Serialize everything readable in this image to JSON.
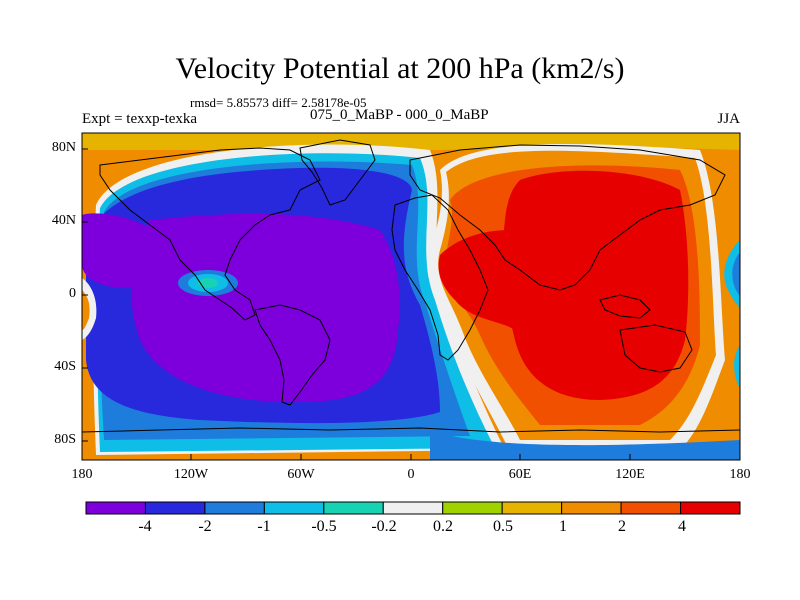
{
  "title": "Velocity Potential at 200 hPa (km2/s)",
  "stats": "rmsd= 5.85573  diff= 2.58178e-05",
  "left_label": "Expt = texxp-texka",
  "center_label": "075_0_MaBP - 000_0_MaBP",
  "right_label": "JJA",
  "map": {
    "lat_ticks": [
      "80N",
      "40N",
      "0",
      "40S",
      "80S"
    ],
    "lon_ticks": [
      "180",
      "120W",
      "60W",
      "0",
      "60E",
      "120E",
      "180"
    ]
  },
  "colorbar": {
    "colors": [
      "#7d00dc",
      "#2828dc",
      "#1e7ddc",
      "#0fbee6",
      "#18d2b4",
      "#f0f0f0",
      "#a0d200",
      "#e6b400",
      "#f08c00",
      "#f05000",
      "#e60000"
    ],
    "labels": [
      "-4",
      "-2",
      "-1",
      "-0.5",
      "-0.2",
      "0.2",
      "0.5",
      "1",
      "2",
      "4"
    ]
  }
}
